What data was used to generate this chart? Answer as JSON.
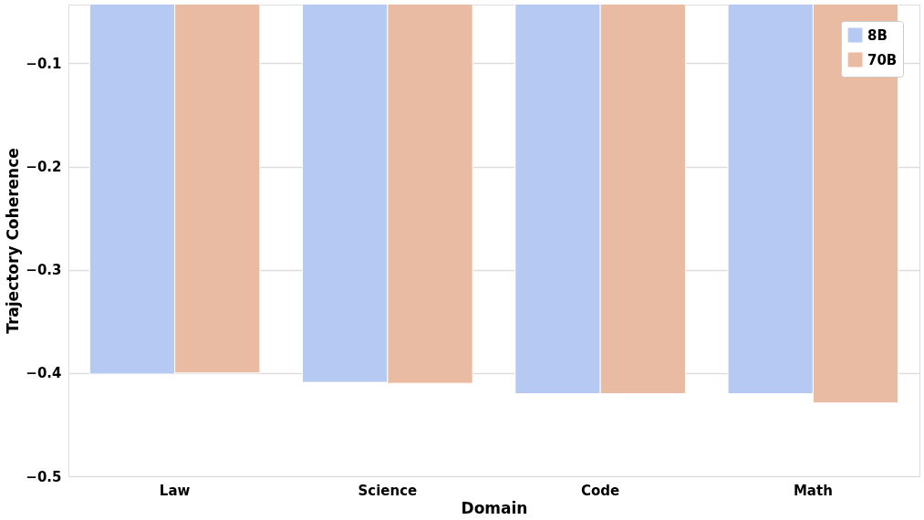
{
  "chart_data": {
    "type": "bar",
    "xlabel": "Domain",
    "ylabel": "Trajectory Coherence",
    "categories": [
      "Law",
      "Science",
      "Code",
      "Math"
    ],
    "series": [
      {
        "name": "8B",
        "color": "#b5c9f2",
        "values": [
          -0.401,
          -0.409,
          -0.42,
          -0.42
        ]
      },
      {
        "name": "70B",
        "color": "#eabba3",
        "values": [
          -0.4,
          -0.41,
          -0.42,
          -0.429
        ]
      }
    ],
    "ylim": [
      -0.5,
      -0.043
    ],
    "yticks": [
      {
        "value": -0.5,
        "label": "−0.5"
      },
      {
        "value": -0.4,
        "label": "−0.4"
      },
      {
        "value": -0.3,
        "label": "−0.3"
      },
      {
        "value": -0.2,
        "label": "−0.2"
      },
      {
        "value": -0.1,
        "label": "−0.1"
      }
    ],
    "grid": "y",
    "legend": "top right"
  }
}
